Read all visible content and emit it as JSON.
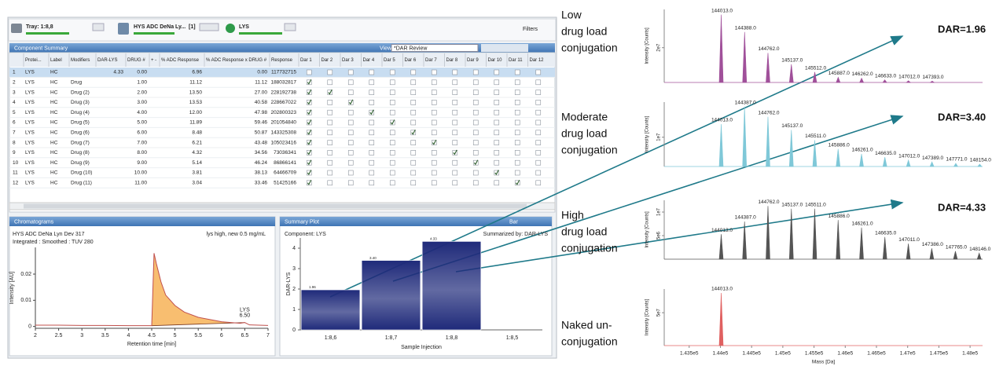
{
  "toolbar": {
    "tray": "Tray: 1:8,8",
    "sample": "HYS ADC DeNa Ly...",
    "count": "[1]",
    "component": "LYS",
    "filters": "Filters"
  },
  "component_summary": {
    "title": "Component Summary",
    "view_label": "View:",
    "view": "*DAR Review",
    "columns": [
      "Protei...",
      "Label",
      "Modifiers",
      "DAR-LYS",
      "DRUG #",
      "+ -",
      "% ADC Response",
      "% ADC Response x DRUG #",
      "Response",
      "Dar 1",
      "Dar 2",
      "Dar 3",
      "Dar 4",
      "Dar 5",
      "Dar 6",
      "Dar 7",
      "Dar 8",
      "Dar 9",
      "Dar 10",
      "Dar 11",
      "Dar 12"
    ],
    "rows": [
      [
        "1",
        "LYS",
        "HC",
        null,
        "4.33",
        "0.00",
        null,
        "6.96",
        "0.00",
        "117732715"
      ],
      [
        "2",
        "LYS",
        "HC",
        "Drug",
        null,
        "1.00",
        null,
        "11.12",
        "11.12",
        "188032817"
      ],
      [
        "3",
        "LYS",
        "HC",
        "Drug (2)",
        null,
        "2.00",
        null,
        "13.50",
        "27.00",
        "228192738"
      ],
      [
        "4",
        "LYS",
        "HC",
        "Drug (3)",
        null,
        "3.00",
        null,
        "13.53",
        "40.58",
        "228667022"
      ],
      [
        "5",
        "LYS",
        "HC",
        "Drug (4)",
        null,
        "4.00",
        null,
        "12.00",
        "47.98",
        "202800323"
      ],
      [
        "6",
        "LYS",
        "HC",
        "Drug (5)",
        null,
        "5.00",
        null,
        "11.89",
        "59.46",
        "201054840"
      ],
      [
        "7",
        "LYS",
        "HC",
        "Drug (6)",
        null,
        "6.00",
        null,
        "8.48",
        "50.87",
        "143325308"
      ],
      [
        "8",
        "LYS",
        "HC",
        "Drug (7)",
        null,
        "7.00",
        null,
        "6.21",
        "43.48",
        "105023416"
      ],
      [
        "9",
        "LYS",
        "HC",
        "Drug (8)",
        null,
        "8.00",
        null,
        "4.32",
        "34.56",
        "73036341"
      ],
      [
        "10",
        "LYS",
        "HC",
        "Drug (9)",
        null,
        "9.00",
        null,
        "5.14",
        "46.24",
        "86866141"
      ],
      [
        "11",
        "LYS",
        "HC",
        "Drug (10)",
        null,
        "10.00",
        null,
        "3.81",
        "38.13",
        "64466709"
      ],
      [
        "12",
        "LYS",
        "HC",
        "Drug (11)",
        null,
        "11.00",
        null,
        "3.04",
        "33.46",
        "51425166"
      ]
    ],
    "checked": [
      [],
      [
        1
      ],
      [
        1,
        2
      ],
      [
        1,
        3
      ],
      [
        1,
        4
      ],
      [
        1,
        5
      ],
      [
        1,
        6
      ],
      [
        1,
        7
      ],
      [
        1,
        8
      ],
      [
        1,
        9
      ],
      [
        1,
        10
      ],
      [
        1,
        11
      ]
    ]
  },
  "chromatogram_panel": {
    "title": "Chromatograms"
  },
  "summary_panel": {
    "title": "Summary Plot",
    "mode": "Bar"
  },
  "chart_data": [
    {
      "type": "line",
      "title": "HYS ADC DeNa Lyn Dev 317",
      "subtitle": "Integrated : Smoothed : TUV 280",
      "note": "lys high, new 0.5 mg/mL",
      "xlabel": "Retention time [min]",
      "ylabel": "Intensity [AU]",
      "x": [
        2,
        2.5,
        3,
        3.5,
        4,
        4.5,
        4.55,
        4.6,
        4.7,
        4.8,
        5,
        5.2,
        5.5,
        6,
        6.4,
        6.5,
        6.6,
        7
      ],
      "values": [
        0.0005,
        0.0005,
        0.0004,
        0.0004,
        0.0003,
        0.0003,
        0.028,
        0.024,
        0.017,
        0.012,
        0.008,
        0.0055,
        0.0035,
        0.0018,
        0.0012,
        0.0015,
        0.0006,
        0.0004
      ],
      "color": "#c0504d",
      "fill": "#f5a840",
      "peak_labels": [
        "LYS",
        "6.50"
      ],
      "xlim": [
        2,
        7
      ],
      "ylim": [
        -0.0007,
        0.0302
      ],
      "xticks": [
        2,
        2.5,
        3,
        3.5,
        4,
        4.5,
        5,
        5.5,
        6,
        6.5,
        7
      ],
      "yticks": [
        0,
        0.01,
        0.02
      ]
    },
    {
      "type": "bar",
      "title": "Component: LYS",
      "note": "Summarized by: DAR-LYS",
      "xlabel": "Sample Injection",
      "ylabel": "DAR-LYS",
      "categories": [
        "1:8,6",
        "1:8,7",
        "1:8,8",
        "1:8,5"
      ],
      "values": [
        1.96,
        3.4,
        4.33,
        null
      ],
      "value_labels": [
        "1.96",
        "3.40",
        "4.33",
        null
      ],
      "color": "#1f2a7a",
      "ylim": [
        0,
        4.5
      ],
      "yticks": [
        0,
        1,
        2,
        3,
        4
      ]
    },
    {
      "type": "spectrum",
      "ylabel": "Intensity [Counts]",
      "color": "#a0509a",
      "x": [
        144013,
        144388,
        144762,
        145137,
        145512,
        145887,
        146262,
        146633,
        147012,
        147393
      ],
      "x_labels": [
        "144013.0",
        "144388.0",
        "144762.0",
        "145137.0",
        "145512.0",
        "145887.0",
        "146262.0",
        "146633.0",
        "147012.0",
        "147393.0"
      ],
      "values": [
        39000000,
        29000000,
        17000000,
        10500000,
        6000000,
        3000000,
        2500000,
        1500000,
        1000000,
        800000
      ],
      "xlim": [
        143100,
        148200
      ],
      "ylim": [
        0,
        42000000
      ],
      "yticks": [
        {
          "value": 20000000,
          "label": "2e7"
        }
      ]
    },
    {
      "type": "spectrum",
      "ylabel": "Intensity [Counts]",
      "color": "#7fc8d8",
      "x": [
        144013,
        144387,
        144762,
        145137,
        145511,
        145886,
        146261,
        146635,
        147012,
        147389,
        147771,
        148154
      ],
      "x_labels": [
        "144013.0",
        "144387.0",
        "144762.0",
        "145137.0",
        "145511.0",
        "145886.0",
        "146261.0",
        "146635.0",
        "147012.0",
        "147389.0",
        "147771.0",
        "148154.0"
      ],
      "values": [
        14500000,
        20500000,
        17000000,
        12500000,
        9000000,
        6000000,
        4300000,
        3200000,
        2200000,
        1600000,
        1100000,
        800000
      ],
      "xlim": [
        143100,
        148200
      ],
      "ylim": [
        0,
        22000000
      ],
      "yticks": [
        {
          "value": 10000000,
          "label": "1e7"
        }
      ]
    },
    {
      "type": "spectrum",
      "ylabel": "Intensity [Counts]",
      "color": "#555555",
      "x": [
        144013,
        144387,
        144762,
        145137,
        145511,
        145886,
        146261,
        146635,
        147011,
        147386,
        147765,
        148146
      ],
      "x_labels": [
        "144013.0",
        "144387.0",
        "144762.0",
        "145137.0",
        "145511.0",
        "145886.0",
        "146261.0",
        "146635.0",
        "147011.0",
        "147386.0",
        "147765.0",
        "148146.0"
      ],
      "values": [
        5300000,
        8000000,
        11300000,
        10700000,
        10700000,
        8300000,
        6700000,
        4700000,
        3300000,
        2300000,
        1700000,
        1300000
      ],
      "xlim": [
        143100,
        148200
      ],
      "ylim": [
        0,
        12500000
      ],
      "yticks": [
        {
          "value": 5000000,
          "label": "5e6"
        },
        {
          "value": 10000000,
          "label": "1e7"
        }
      ]
    },
    {
      "type": "spectrum",
      "ylabel": "Intensity [Counts]",
      "xlabel": "Mass [Da]",
      "color": "#e06060",
      "x": [
        144013
      ],
      "x_labels": [
        "144013.0"
      ],
      "values": [
        80000000
      ],
      "xlim": [
        143100,
        148200
      ],
      "ylim": [
        0,
        86000000
      ],
      "yticks": [
        {
          "value": 50000000,
          "label": "5e7"
        }
      ],
      "xticks": [
        {
          "value": 143500,
          "label": "1.435e5"
        },
        {
          "value": 144000,
          "label": "1.44e5"
        },
        {
          "value": 144500,
          "label": "1.445e5"
        },
        {
          "value": 145000,
          "label": "1.45e5"
        },
        {
          "value": 145500,
          "label": "1.455e5"
        },
        {
          "value": 146000,
          "label": "1.46e5"
        },
        {
          "value": 146500,
          "label": "1.465e5"
        },
        {
          "value": 147000,
          "label": "1.47e5"
        },
        {
          "value": 147500,
          "label": "1.475e5"
        },
        {
          "value": 148000,
          "label": "1.48e5"
        }
      ]
    }
  ],
  "annotations": [
    {
      "lines": [
        "Low",
        "drug load",
        "conjugation"
      ],
      "dar": "DAR=1.96"
    },
    {
      "lines": [
        "Moderate",
        "drug load",
        "conjugation"
      ],
      "dar": "DAR=3.40"
    },
    {
      "lines": [
        "High",
        "drug load",
        "conjugation"
      ],
      "dar": "DAR=4.33"
    },
    {
      "lines": [
        "Naked un-",
        "conjugation"
      ]
    }
  ]
}
